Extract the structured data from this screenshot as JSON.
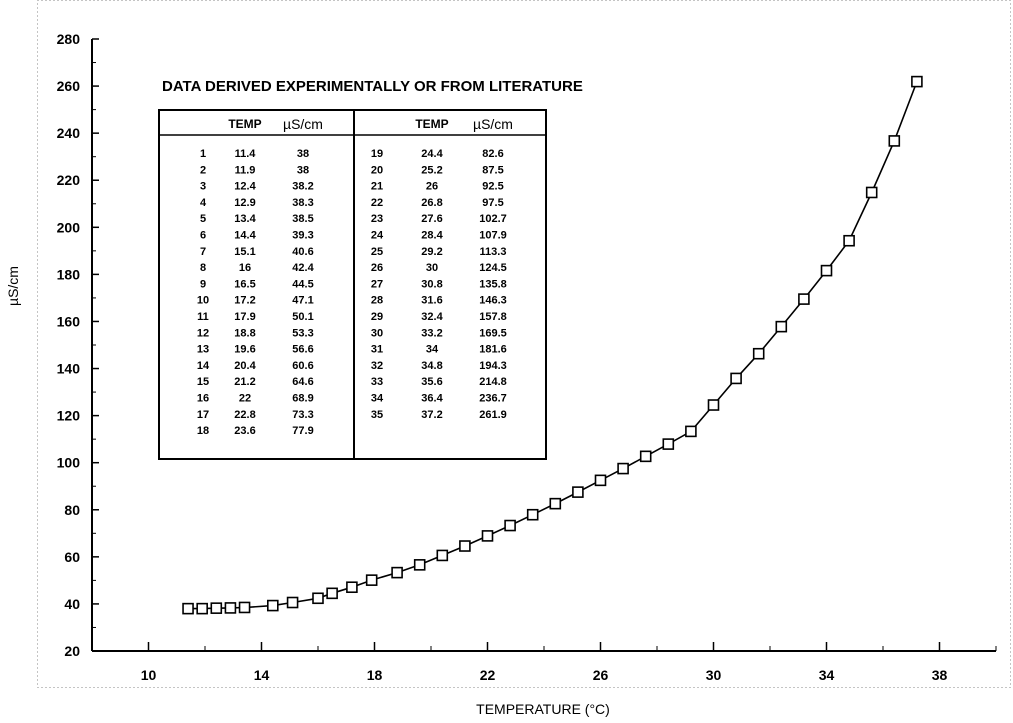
{
  "chart_data": {
    "type": "line",
    "xlabel": "TEMPERATURE (°C)",
    "ylabel": "µS/cm",
    "xlim": [
      8,
      40
    ],
    "ylim": [
      20,
      280
    ],
    "x_ticks": [
      "10",
      "14",
      "18",
      "22",
      "26",
      "30",
      "34",
      "38"
    ],
    "y_ticks": [
      "20",
      "40",
      "60",
      "80",
      "100",
      "120",
      "140",
      "160",
      "180",
      "200",
      "220",
      "240",
      "260",
      "280"
    ],
    "grid": false,
    "marker": "square",
    "annotation": "DATA DERIVED EXPERIMENTALLY OR FROM LITERATURE",
    "table": {
      "headers": [
        "TEMP",
        "µS/cm",
        "TEMP",
        "µS/cm"
      ],
      "rows_left": [
        [
          "1",
          "11.4",
          "38"
        ],
        [
          "2",
          "11.9",
          "38"
        ],
        [
          "3",
          "12.4",
          "38.2"
        ],
        [
          "4",
          "12.9",
          "38.3"
        ],
        [
          "5",
          "13.4",
          "38.5"
        ],
        [
          "6",
          "14.4",
          "39.3"
        ],
        [
          "7",
          "15.1",
          "40.6"
        ],
        [
          "8",
          "16",
          "42.4"
        ],
        [
          "9",
          "16.5",
          "44.5"
        ],
        [
          "10",
          "17.2",
          "47.1"
        ],
        [
          "11",
          "17.9",
          "50.1"
        ],
        [
          "12",
          "18.8",
          "53.3"
        ],
        [
          "13",
          "19.6",
          "56.6"
        ],
        [
          "14",
          "20.4",
          "60.6"
        ],
        [
          "15",
          "21.2",
          "64.6"
        ],
        [
          "16",
          "22",
          "68.9"
        ],
        [
          "17",
          "22.8",
          "73.3"
        ],
        [
          "18",
          "23.6",
          "77.9"
        ]
      ],
      "rows_right": [
        [
          "19",
          "24.4",
          "82.6"
        ],
        [
          "20",
          "25.2",
          "87.5"
        ],
        [
          "21",
          "26",
          "92.5"
        ],
        [
          "22",
          "26.8",
          "97.5"
        ],
        [
          "23",
          "27.6",
          "102.7"
        ],
        [
          "24",
          "28.4",
          "107.9"
        ],
        [
          "25",
          "29.2",
          "113.3"
        ],
        [
          "26",
          "30",
          "124.5"
        ],
        [
          "27",
          "30.8",
          "135.8"
        ],
        [
          "28",
          "31.6",
          "146.3"
        ],
        [
          "29",
          "32.4",
          "157.8"
        ],
        [
          "30",
          "33.2",
          "169.5"
        ],
        [
          "31",
          "34",
          "181.6"
        ],
        [
          "32",
          "34.8",
          "194.3"
        ],
        [
          "33",
          "35.6",
          "214.8"
        ],
        [
          "34",
          "36.4",
          "236.7"
        ],
        [
          "35",
          "37.2",
          "261.9"
        ]
      ]
    },
    "series": [
      {
        "x": [
          11.4,
          11.9,
          12.4,
          12.9,
          13.4,
          14.4,
          15.1,
          16,
          16.5,
          17.2,
          17.9,
          18.8,
          19.6,
          20.4,
          21.2,
          22,
          22.8,
          23.6,
          24.4,
          25.2,
          26,
          26.8,
          27.6,
          28.4,
          29.2,
          30,
          30.8,
          31.6,
          32.4,
          33.2,
          34,
          34.8,
          35.6,
          36.4,
          37.2
        ],
        "values": [
          38,
          38,
          38.2,
          38.3,
          38.5,
          39.3,
          40.6,
          42.4,
          44.5,
          47.1,
          50.1,
          53.3,
          56.6,
          60.6,
          64.6,
          68.9,
          73.3,
          77.9,
          82.6,
          87.5,
          92.5,
          97.5,
          102.7,
          107.9,
          113.3,
          124.5,
          135.8,
          146.3,
          157.8,
          169.5,
          181.6,
          194.3,
          214.8,
          236.7,
          261.9
        ]
      }
    ]
  }
}
